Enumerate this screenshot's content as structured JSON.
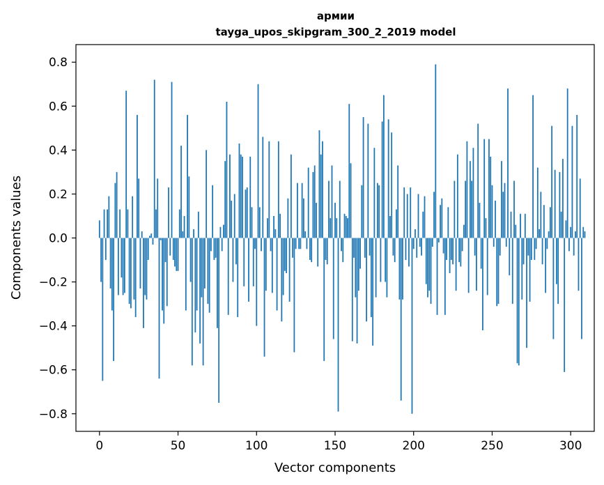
{
  "chart_data": {
    "type": "bar",
    "title": "армии",
    "subtitle": "tayga_upos_skipgram_300_2_2019 model",
    "xlabel": "Vector components",
    "ylabel": "Components values",
    "xlim": [
      -15,
      315
    ],
    "ylim": [
      -0.88,
      0.88
    ],
    "x_ticks": [
      0,
      50,
      100,
      150,
      200,
      250,
      300
    ],
    "x_tick_labels": [
      "0",
      "50",
      "100",
      "150",
      "200",
      "250",
      "300"
    ],
    "y_ticks": [
      -0.8,
      -0.6,
      -0.4,
      -0.2,
      0.0,
      0.2,
      0.4,
      0.6,
      0.8
    ],
    "y_tick_labels": [
      "−0.8",
      "−0.6",
      "−0.4",
      "−0.2",
      "0.0",
      "0.2",
      "0.4",
      "0.6",
      "0.8"
    ],
    "bar_color": "#1f77b4",
    "grid": false,
    "series": [
      {
        "name": "армии",
        "x_start": 0,
        "values": [
          0.08,
          -0.2,
          -0.65,
          0.13,
          -0.1,
          0.13,
          0.19,
          -0.23,
          -0.33,
          -0.56,
          0.25,
          0.3,
          -0.26,
          0.13,
          -0.18,
          -0.26,
          -0.25,
          0.67,
          0.13,
          -0.3,
          -0.32,
          0.19,
          -0.28,
          -0.36,
          0.56,
          0.27,
          -0.23,
          0.03,
          -0.41,
          -0.26,
          -0.28,
          -0.1,
          0.01,
          0.02,
          -0.03,
          0.72,
          0.13,
          0.27,
          -0.64,
          -0.01,
          -0.33,
          -0.39,
          -0.11,
          -0.31,
          0.23,
          -0.08,
          0.71,
          -0.1,
          -0.13,
          -0.15,
          -0.15,
          0.13,
          0.42,
          0.03,
          0.1,
          -0.33,
          0.56,
          0.28,
          -0.2,
          -0.58,
          0.04,
          -0.43,
          -0.33,
          0.12,
          -0.48,
          -0.27,
          -0.58,
          -0.23,
          0.4,
          -0.3,
          -0.34,
          -0.06,
          0.24,
          -0.1,
          -0.09,
          -0.41,
          -0.75,
          0.05,
          -0.06,
          0.06,
          0.35,
          0.62,
          -0.35,
          0.38,
          0.17,
          -0.2,
          0.2,
          -0.12,
          -0.36,
          0.43,
          0.38,
          0.37,
          -0.22,
          0.22,
          0.23,
          -0.29,
          0.37,
          0.14,
          -0.22,
          -0.05,
          -0.4,
          0.7,
          0.14,
          -0.06,
          0.46,
          -0.54,
          -0.24,
          0.09,
          0.44,
          -0.06,
          -0.25,
          0.1,
          0.04,
          -0.33,
          0.44,
          0.11,
          -0.38,
          -0.26,
          -0.15,
          -0.16,
          0.18,
          -0.29,
          0.38,
          -0.09,
          -0.52,
          -0.05,
          0.25,
          -0.05,
          -0.05,
          0.25,
          0.18,
          0.03,
          -0.05,
          0.32,
          -0.1,
          -0.11,
          0.3,
          0.33,
          0.16,
          -0.13,
          0.49,
          0.38,
          0.44,
          -0.56,
          -0.1,
          -0.12,
          0.26,
          0.09,
          0.33,
          -0.46,
          0.16,
          0.09,
          -0.79,
          0.26,
          -0.06,
          -0.11,
          0.11,
          0.1,
          0.09,
          0.61,
          0.34,
          -0.47,
          -0.09,
          -0.27,
          -0.48,
          -0.24,
          -0.14,
          0.24,
          0.55,
          -0.09,
          -0.38,
          0.52,
          -0.08,
          -0.36,
          -0.49,
          0.41,
          -0.27,
          0.25,
          0.24,
          -0.2,
          0.53,
          0.65,
          -0.2,
          -0.27,
          0.54,
          0.1,
          0.48,
          -0.08,
          -0.11,
          0.13,
          0.33,
          -0.28,
          -0.74,
          -0.28,
          0.23,
          -0.1,
          0.2,
          -0.13,
          0.23,
          -0.8,
          -0.05,
          0.04,
          -0.09,
          0.2,
          -0.04,
          -0.08,
          0.12,
          0.19,
          -0.21,
          -0.27,
          -0.24,
          -0.3,
          -0.04,
          0.21,
          0.79,
          -0.35,
          -0.02,
          0.15,
          0.18,
          -0.07,
          -0.35,
          -0.1,
          0.14,
          -0.16,
          -0.1,
          -0.12,
          0.26,
          -0.24,
          0.38,
          -0.11,
          -0.13,
          -0.06,
          0.06,
          0.26,
          0.44,
          -0.25,
          0.35,
          0.26,
          0.41,
          -0.08,
          -0.24,
          0.52,
          0.16,
          -0.14,
          -0.42,
          0.45,
          0.09,
          -0.26,
          0.45,
          0.37,
          0.24,
          -0.04,
          0.17,
          -0.31,
          -0.3,
          -0.08,
          0.35,
          0.21,
          0.25,
          -0.04,
          0.68,
          -0.17,
          0.12,
          -0.3,
          0.26,
          0.06,
          -0.57,
          -0.58,
          0.11,
          -0.28,
          -0.12,
          0.11,
          -0.5,
          -0.08,
          -0.29,
          -0.1,
          0.65,
          -0.1,
          -0.05,
          0.32,
          0.04,
          0.21,
          -0.12,
          0.15,
          -0.25,
          -0.05,
          0.03,
          0.14,
          0.51,
          -0.46,
          0.31,
          -0.21,
          -0.3,
          0.3,
          0.12,
          0.36,
          -0.61,
          0.08,
          0.68,
          -0.06,
          0.05,
          0.51,
          -0.08,
          0.03,
          0.56,
          -0.24,
          0.27,
          -0.46,
          0.05,
          0.03
        ]
      }
    ]
  }
}
